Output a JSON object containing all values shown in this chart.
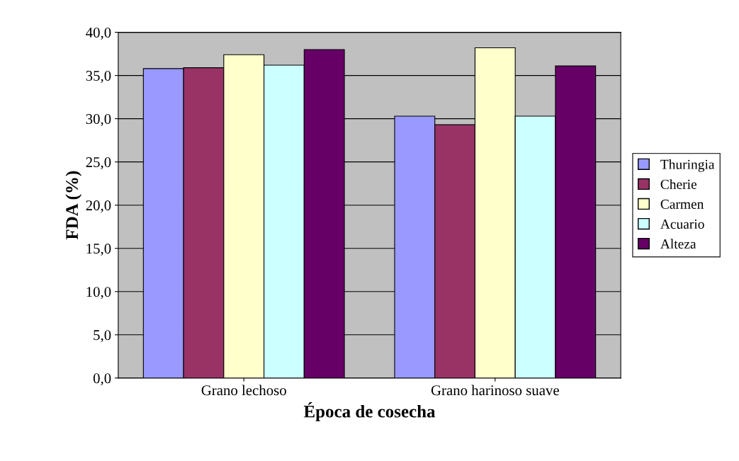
{
  "chart_data": {
    "type": "bar",
    "xlabel": "Época de cosecha",
    "ylabel": "FDA (%)",
    "categories": [
      "Grano lechoso",
      "Grano harinoso suave"
    ],
    "series": [
      {
        "name": "Thuringia",
        "color": "#9999ff",
        "values": [
          35.8,
          30.3
        ]
      },
      {
        "name": "Cherie",
        "color": "#993366",
        "values": [
          35.9,
          29.3
        ]
      },
      {
        "name": "Carmen",
        "color": "#ffffcc",
        "values": [
          37.4,
          38.2
        ]
      },
      {
        "name": "Acuario",
        "color": "#ccffff",
        "values": [
          36.2,
          30.3
        ]
      },
      {
        "name": "Alteza",
        "color": "#660066",
        "values": [
          38.0,
          36.1
        ]
      }
    ],
    "ylim": [
      0,
      40
    ],
    "yticks": [
      {
        "value": 0,
        "label": "0,0"
      },
      {
        "value": 5,
        "label": "5,0"
      },
      {
        "value": 10,
        "label": "10,0"
      },
      {
        "value": 15,
        "label": "15,0"
      },
      {
        "value": 20,
        "label": "20,0"
      },
      {
        "value": 25,
        "label": "25,0"
      },
      {
        "value": 30,
        "label": "30,0"
      },
      {
        "value": 35,
        "label": "35,0"
      },
      {
        "value": 40,
        "label": "40,0"
      }
    ],
    "grid": "y",
    "legend": "right"
  }
}
